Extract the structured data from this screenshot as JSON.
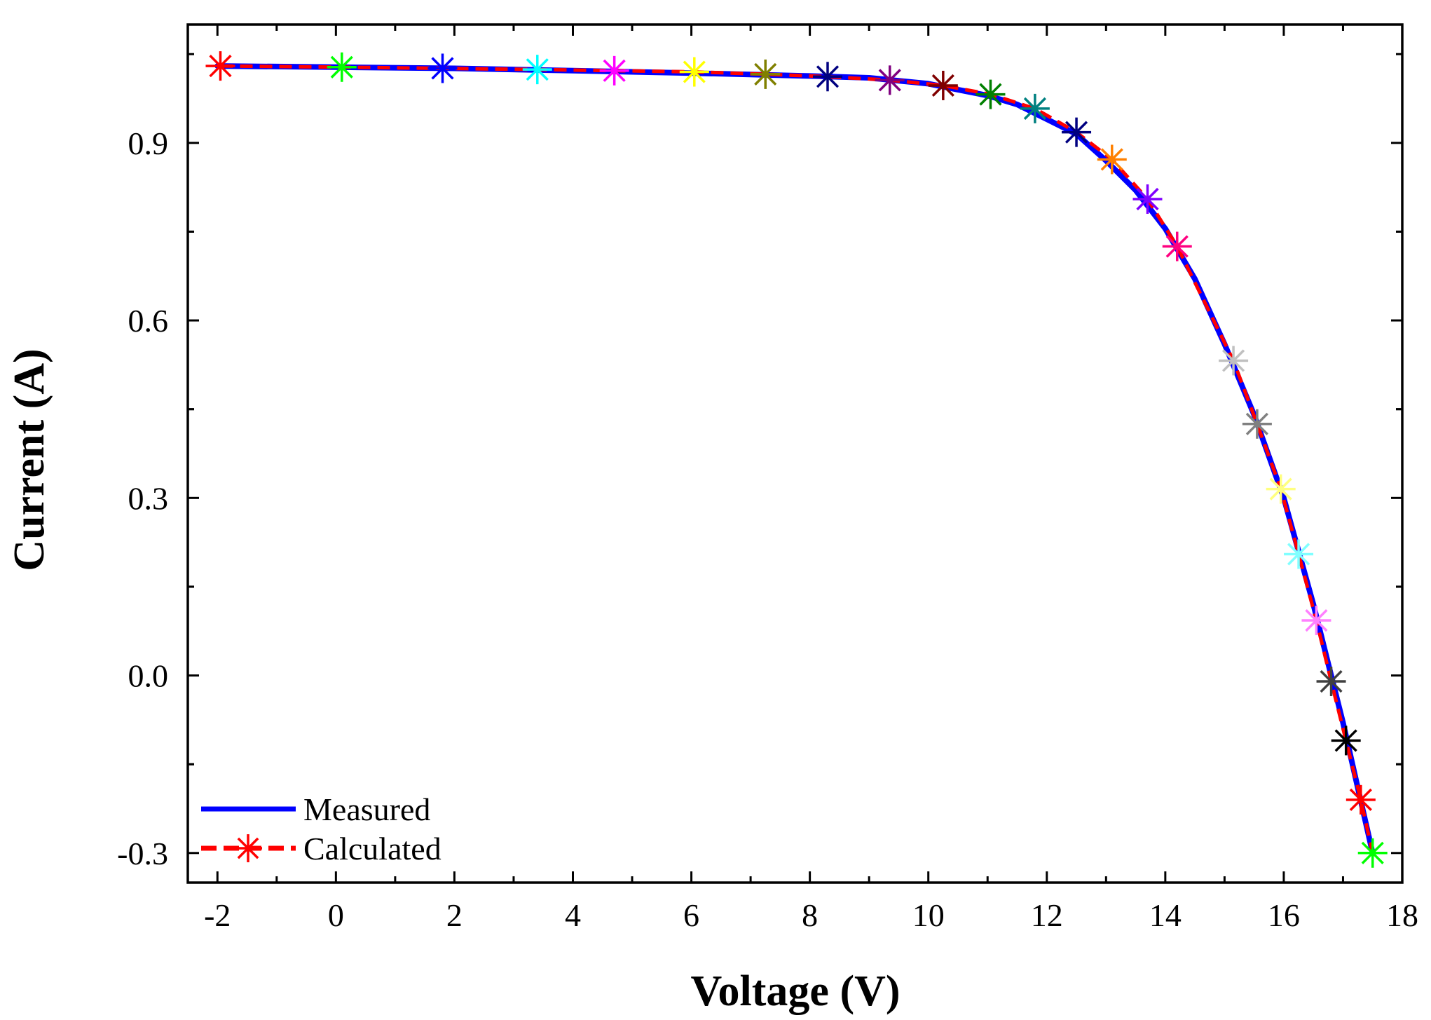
{
  "chart_data": {
    "type": "line",
    "xlabel": "Voltage (V)",
    "ylabel": "Current (A)",
    "xlim": [
      -2.5,
      18
    ],
    "ylim": [
      -0.35,
      1.1
    ],
    "xticks": [
      -2,
      0,
      2,
      4,
      6,
      8,
      10,
      12,
      14,
      16,
      18
    ],
    "xtick_labels": [
      "-2",
      "0",
      "2",
      "4",
      "6",
      "8",
      "10",
      "12",
      "14",
      "16",
      "18"
    ],
    "yticks": [
      -0.3,
      0.0,
      0.3,
      0.6,
      0.9
    ],
    "ytick_labels": [
      "-0.3",
      "0.0",
      "0.3",
      "0.6",
      "0.9"
    ],
    "grid": false,
    "legend_position": "bottom-left",
    "series": [
      {
        "name": "Measured",
        "style": "solid",
        "color": "#0000ff",
        "x": [
          -2.0,
          0.0,
          2.0,
          4.0,
          6.0,
          8.0,
          9.0,
          10.0,
          10.5,
          11.0,
          11.5,
          12.0,
          12.5,
          13.0,
          13.5,
          14.0,
          14.5,
          15.0,
          15.5,
          16.0,
          16.5,
          17.0,
          17.5
        ],
        "y": [
          1.03,
          1.028,
          1.026,
          1.022,
          1.018,
          1.013,
          1.01,
          1.0,
          0.99,
          0.98,
          0.965,
          0.94,
          0.915,
          0.87,
          0.82,
          0.755,
          0.67,
          0.56,
          0.44,
          0.3,
          0.12,
          -0.08,
          -0.3
        ]
      },
      {
        "name": "Calculated",
        "style": "dashed",
        "color": "#ff0000",
        "marker": "asterisk",
        "x": [
          -1.95,
          0.1,
          1.8,
          3.4,
          4.7,
          6.05,
          7.25,
          8.3,
          9.35,
          10.25,
          11.05,
          11.8,
          12.5,
          13.1,
          13.7,
          14.2,
          15.15,
          15.55,
          15.95,
          16.25,
          16.55,
          16.8,
          17.05,
          17.3,
          17.5
        ],
        "y": [
          1.03,
          1.028,
          1.026,
          1.024,
          1.022,
          1.02,
          1.016,
          1.012,
          1.006,
          0.997,
          0.982,
          0.958,
          0.918,
          0.872,
          0.805,
          0.725,
          0.532,
          0.425,
          0.315,
          0.205,
          0.093,
          -0.01,
          -0.11,
          -0.21,
          -0.3
        ],
        "marker_colors": [
          "#ff0000",
          "#00ff00",
          "#0000ff",
          "#00ffff",
          "#ff00ff",
          "#ffff00",
          "#808000",
          "#000080",
          "#800080",
          "#800000",
          "#008000",
          "#008080",
          "#000080",
          "#ff8000",
          "#8000ff",
          "#ff0080",
          "#c0c0c0",
          "#808080",
          "#ffff80",
          "#80ffff",
          "#ff80ff",
          "#404040",
          "#000000",
          "#ff0000",
          "#00ff00"
        ]
      }
    ]
  }
}
